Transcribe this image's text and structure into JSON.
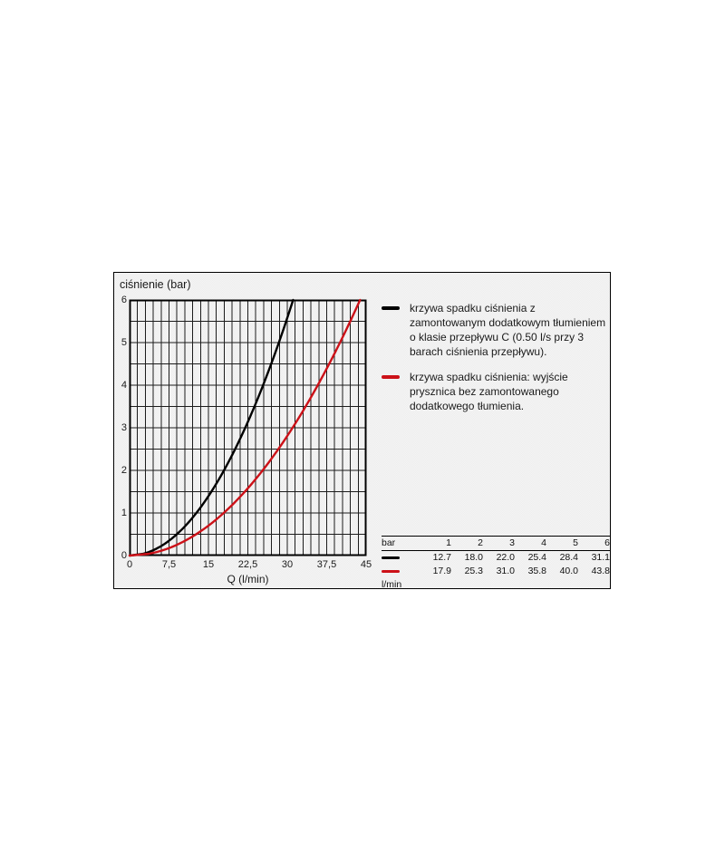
{
  "canvas": {
    "background": "#ffffff"
  },
  "panel": {
    "background": "#f2f2f2",
    "border_color": "#000000"
  },
  "colors": {
    "black_series": "#000000",
    "red_series": "#cc1118",
    "grid_line": "#1c1c1c",
    "text": "#1a1a1a"
  },
  "chart_data": {
    "type": "line",
    "title": "",
    "y_axis_label": "ciśnienie (bar)",
    "x_axis_label": "Q (l/min)",
    "xlim": [
      0,
      45
    ],
    "ylim": [
      0,
      6
    ],
    "x_tick_labels": [
      "0",
      "7,5",
      "15",
      "22,5",
      "30",
      "37,5",
      "45"
    ],
    "x_tick_values": [
      0,
      7.5,
      15,
      22.5,
      30,
      37.5,
      45
    ],
    "y_tick_labels": [
      "0",
      "1",
      "2",
      "3",
      "4",
      "5",
      "6"
    ],
    "y_tick_values": [
      0,
      1,
      2,
      3,
      4,
      5,
      6
    ],
    "x_minor_step": 1.5,
    "y_minor_step": 0.5,
    "grid": true,
    "legend_position": "right",
    "series": [
      {
        "name": "pressure-drop-with-damping",
        "color": "#000000",
        "starts_at_origin": true,
        "pressures_bar": [
          1,
          2,
          3,
          4,
          5,
          6
        ],
        "flows_lmin": [
          12.7,
          18.0,
          22.0,
          25.4,
          28.4,
          31.1
        ]
      },
      {
        "name": "pressure-drop-without-damping",
        "color": "#cc1118",
        "starts_at_origin": true,
        "pressures_bar": [
          1,
          2,
          3,
          4,
          5,
          6
        ],
        "flows_lmin": [
          17.9,
          25.3,
          31.0,
          35.8,
          40.0,
          43.8
        ]
      }
    ]
  },
  "legend": {
    "items": [
      {
        "color": "#000000",
        "lines": [
          "krzywa spadku ciśnienia z",
          "zamontowanym dodatkowym tłumieniem",
          "o klasie przepływu C (0.50 l/s przy 3",
          "barach ciśnienia przepływu)."
        ]
      },
      {
        "color": "#cc1118",
        "lines": [
          "krzywa spadku ciśnienia: wyjście",
          "prysznica bez zamontowanego",
          "dodatkowego tłumienia."
        ]
      }
    ]
  },
  "table": {
    "unit_header": "bar",
    "unit_footer": "l/min",
    "columns": [
      "1",
      "2",
      "3",
      "4",
      "5",
      "6"
    ],
    "rows": [
      {
        "series": "pressure-drop-with-damping",
        "color": "#000000",
        "values": [
          "12.7",
          "18.0",
          "22.0",
          "25.4",
          "28.4",
          "31.1"
        ]
      },
      {
        "series": "pressure-drop-without-damping",
        "color": "#cc1118",
        "values": [
          "17.9",
          "25.3",
          "31.0",
          "35.8",
          "40.0",
          "43.8"
        ]
      }
    ]
  }
}
